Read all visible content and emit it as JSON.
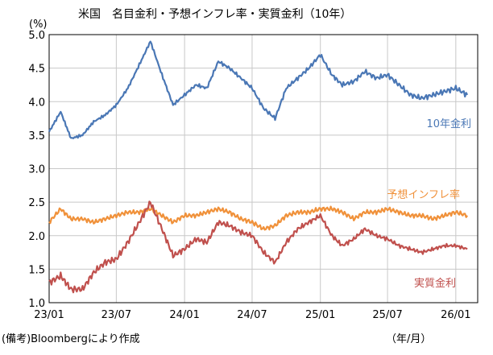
{
  "chart_data": {
    "type": "line",
    "title": "米国　名目金利・予想インフレ率・実質金利（10年）",
    "y_unit": "(%)",
    "x_unit": "（年/月）",
    "source": "(備考)Bloombergにより作成",
    "x_tick_labels": [
      "23/01",
      "23/07",
      "24/01",
      "24/07",
      "25/01",
      "25/07",
      "26/01"
    ],
    "y_tick_labels": [
      "1.0",
      "1.5",
      "2.0",
      "2.5",
      "3.0",
      "3.5",
      "4.0",
      "4.5",
      "5.0"
    ],
    "ylim": [
      1.0,
      5.0
    ],
    "grid": "horizontal and vertical",
    "x": [
      "2023-01",
      "2023-02",
      "2023-03",
      "2023-04",
      "2023-05",
      "2023-06",
      "2023-07",
      "2023-08",
      "2023-09",
      "2023-10",
      "2023-11",
      "2023-12",
      "2024-01",
      "2024-02",
      "2024-03",
      "2024-04",
      "2024-05",
      "2024-06",
      "2024-07",
      "2024-08",
      "2024-09",
      "2024-10",
      "2024-11",
      "2024-12",
      "2025-01",
      "2025-02",
      "2025-03",
      "2025-04",
      "2025-05",
      "2025-06",
      "2025-07",
      "2025-08",
      "2025-09",
      "2025-10",
      "2025-11",
      "2025-12",
      "2026-01",
      "2026-02"
    ],
    "series": [
      {
        "name": "10年金利",
        "color": "#4a77b5",
        "values": [
          3.55,
          3.85,
          3.45,
          3.5,
          3.7,
          3.8,
          3.95,
          4.2,
          4.55,
          4.9,
          4.4,
          3.95,
          4.1,
          4.25,
          4.2,
          4.6,
          4.5,
          4.35,
          4.2,
          3.9,
          3.75,
          4.2,
          4.35,
          4.5,
          4.7,
          4.4,
          4.25,
          4.3,
          4.45,
          4.35,
          4.4,
          4.25,
          4.1,
          4.05,
          4.1,
          4.15,
          4.2,
          4.1
        ]
      },
      {
        "name": "予想インフレ率",
        "color": "#f0913a",
        "values": [
          2.2,
          2.4,
          2.25,
          2.25,
          2.2,
          2.25,
          2.3,
          2.35,
          2.35,
          2.4,
          2.3,
          2.2,
          2.3,
          2.3,
          2.35,
          2.4,
          2.35,
          2.25,
          2.2,
          2.1,
          2.15,
          2.3,
          2.35,
          2.35,
          2.4,
          2.4,
          2.35,
          2.25,
          2.35,
          2.35,
          2.4,
          2.35,
          2.3,
          2.3,
          2.25,
          2.3,
          2.35,
          2.3
        ]
      },
      {
        "name": "実質金利",
        "color": "#c0504d",
        "values": [
          1.3,
          1.4,
          1.2,
          1.2,
          1.45,
          1.6,
          1.65,
          1.9,
          2.2,
          2.5,
          2.1,
          1.7,
          1.8,
          1.95,
          1.9,
          2.2,
          2.15,
          2.05,
          2.0,
          1.75,
          1.6,
          1.9,
          2.1,
          2.2,
          2.3,
          2.0,
          1.85,
          1.95,
          2.1,
          2.0,
          1.95,
          1.85,
          1.8,
          1.75,
          1.8,
          1.85,
          1.85,
          1.8
        ]
      }
    ]
  }
}
